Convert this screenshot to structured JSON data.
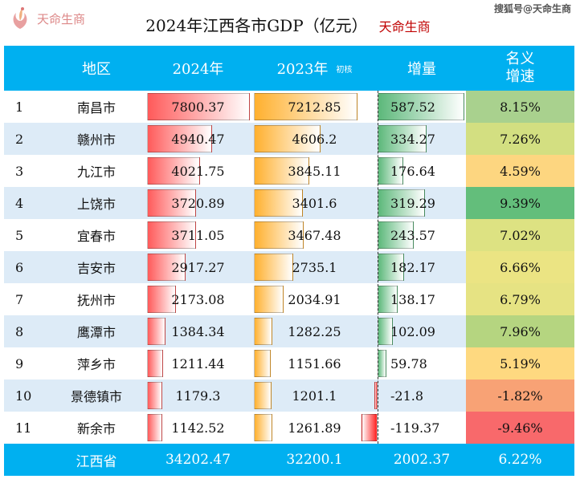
{
  "title": "2024年江西各市GDP（亿元）",
  "brand": "天命生商",
  "headers": {
    "region": "地区",
    "y2024": "2024年",
    "y2023": "2023年",
    "y2023_note": "初核",
    "increase": "增量",
    "rate_line1": "名义",
    "rate_line2": "增速"
  },
  "rows": [
    {
      "rank": "1",
      "region": "南昌市",
      "y2024": "7800.37",
      "y2023": "7212.85",
      "increase": "587.52",
      "rate": "8.15%",
      "rate_color": "#a9d18e"
    },
    {
      "rank": "2",
      "region": "赣州市",
      "y2024": "4940.47",
      "y2023": "4606.2",
      "increase": "334.27",
      "rate": "7.26%",
      "rate_color": "#d3df81"
    },
    {
      "rank": "3",
      "region": "九江市",
      "y2024": "4021.75",
      "y2023": "3845.11",
      "increase": "176.64",
      "rate": "4.59%",
      "rate_color": "#fdd680"
    },
    {
      "rank": "4",
      "region": "上饶市",
      "y2024": "3720.89",
      "y2023": "3401.6",
      "increase": "319.29",
      "rate": "9.39%",
      "rate_color": "#63be7b"
    },
    {
      "rank": "5",
      "region": "宜春市",
      "y2024": "3711.05",
      "y2023": "3467.48",
      "increase": "243.57",
      "rate": "7.02%",
      "rate_color": "#dde282"
    },
    {
      "rank": "6",
      "region": "吉安市",
      "y2024": "2917.27",
      "y2023": "2735.1",
      "increase": "182.17",
      "rate": "6.66%",
      "rate_color": "#ebe483"
    },
    {
      "rank": "7",
      "region": "抚州市",
      "y2024": "2173.08",
      "y2023": "2034.91",
      "increase": "138.17",
      "rate": "6.79%",
      "rate_color": "#e6e383"
    },
    {
      "rank": "8",
      "region": "鹰潭市",
      "y2024": "1384.34",
      "y2023": "1282.25",
      "increase": "102.09",
      "rate": "7.96%",
      "rate_color": "#b5d580"
    },
    {
      "rank": "9",
      "region": "萍乡市",
      "y2024": "1211.44",
      "y2023": "1151.66",
      "increase": "59.78",
      "rate": "5.19%",
      "rate_color": "#fed980"
    },
    {
      "rank": "10",
      "region": "景德镇市",
      "y2024": "1179.3",
      "y2023": "1201.1",
      "increase": "-21.8",
      "rate": "-1.82%",
      "rate_color": "#f8a275"
    },
    {
      "rank": "11",
      "region": "新余市",
      "y2024": "1142.52",
      "y2023": "1261.89",
      "increase": "-119.37",
      "rate": "-9.46%",
      "rate_color": "#f8696b"
    }
  ],
  "total": {
    "region": "江西省",
    "y2024": "34202.47",
    "y2023": "32200.1",
    "increase": "2002.37",
    "rate": "6.22%"
  },
  "colors": {
    "header": "#00b0f0",
    "alt_row": "#ddebf7",
    "bar2024": "#ff5a5a",
    "bar2023": "#ffb02e",
    "bar_pos": "#5cb87a",
    "bar_neg": "#ff2020"
  },
  "watermark": "天命生商",
  "sohu_watermark": "搜狐号@天命生商"
}
